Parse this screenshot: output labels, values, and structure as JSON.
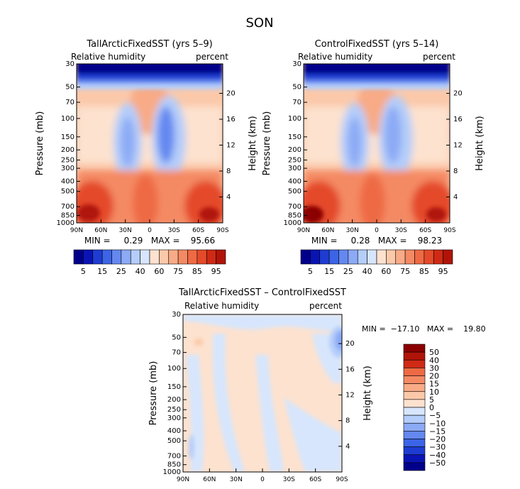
{
  "page_title": "SON",
  "chart_data": [
    {
      "type": "heatmap",
      "title": "TallArcticFixedSST (yrs 5–9)",
      "left_label": "Relative humidity",
      "right_label": "percent",
      "ylabel": "Pressure (mb)",
      "y2label": "Height (km)",
      "xticks": [
        "90N",
        "60N",
        "30N",
        "0",
        "30S",
        "60S",
        "90S"
      ],
      "yticks": [
        1000,
        850,
        700,
        500,
        400,
        300,
        250,
        200,
        150,
        100,
        70,
        50,
        30
      ],
      "y2ticks": [
        4,
        8,
        12,
        16,
        20
      ],
      "ylim": [
        1000,
        30
      ],
      "xlim": [
        90,
        -90
      ],
      "stats": "MIN =     0.29   MAX =    95.66",
      "colorbar": {
        "orientation": "horizontal",
        "labels": [
          "5",
          "15",
          "25",
          "40",
          "60",
          "75",
          "85",
          "95"
        ],
        "levels": [
          5,
          10,
          15,
          20,
          25,
          30,
          40,
          50,
          60,
          70,
          75,
          80,
          85,
          90,
          95
        ]
      }
    },
    {
      "type": "heatmap",
      "title": "ControlFixedSST (yrs 5–14)",
      "left_label": "Relative humidity",
      "right_label": "percent",
      "ylabel": "Pressure (mb)",
      "y2label": "Height (km)",
      "xticks": [
        "90N",
        "60N",
        "30N",
        "0",
        "30S",
        "60S",
        "90S"
      ],
      "yticks": [
        1000,
        850,
        700,
        500,
        400,
        300,
        250,
        200,
        150,
        100,
        70,
        50,
        30
      ],
      "y2ticks": [
        4,
        8,
        12,
        16,
        20
      ],
      "ylim": [
        1000,
        30
      ],
      "xlim": [
        90,
        -90
      ],
      "stats": "MIN =     0.28   MAX =    98.23",
      "colorbar": {
        "orientation": "horizontal",
        "labels": [
          "5",
          "15",
          "25",
          "40",
          "60",
          "75",
          "85",
          "95"
        ],
        "levels": [
          5,
          10,
          15,
          20,
          25,
          30,
          40,
          50,
          60,
          70,
          75,
          80,
          85,
          90,
          95
        ]
      }
    },
    {
      "type": "heatmap",
      "title": "TallArcticFixedSST – ControlFixedSST",
      "left_label": "Relative humidity",
      "right_label": "percent",
      "ylabel": "Pressure (mb)",
      "y2label": "Height (km)",
      "xticks": [
        "90N",
        "60N",
        "30N",
        "0",
        "30S",
        "60S",
        "90S"
      ],
      "yticks": [
        1000,
        850,
        700,
        500,
        400,
        300,
        250,
        200,
        150,
        100,
        70,
        50,
        30
      ],
      "y2ticks": [
        4,
        8,
        12,
        16,
        20
      ],
      "ylim": [
        1000,
        30
      ],
      "xlim": [
        90,
        -90
      ],
      "stats": "MIN =  −17.10   MAX =    19.80",
      "colorbar": {
        "orientation": "vertical",
        "labels": [
          "50",
          "40",
          "30",
          "20",
          "15",
          "10",
          "5",
          "0",
          "−5",
          "−10",
          "−15",
          "−20",
          "−30",
          "−40",
          "−50"
        ],
        "levels": [
          50,
          40,
          30,
          20,
          15,
          10,
          5,
          0,
          -5,
          -10,
          -15,
          -20,
          -30,
          -40,
          -50
        ]
      }
    }
  ],
  "colors": {
    "blues": [
      "#00008b",
      "#0a14b4",
      "#1e3cd2",
      "#3c64e6",
      "#6488f0",
      "#8caaf5",
      "#b4cdfa",
      "#d7e6fc"
    ],
    "reds": [
      "#fde2cf",
      "#fbc9aa",
      "#f8ab86",
      "#f48a64",
      "#ee6a44",
      "#e44a2a",
      "#cf2a15",
      "#b01408",
      "#8b0000"
    ]
  }
}
